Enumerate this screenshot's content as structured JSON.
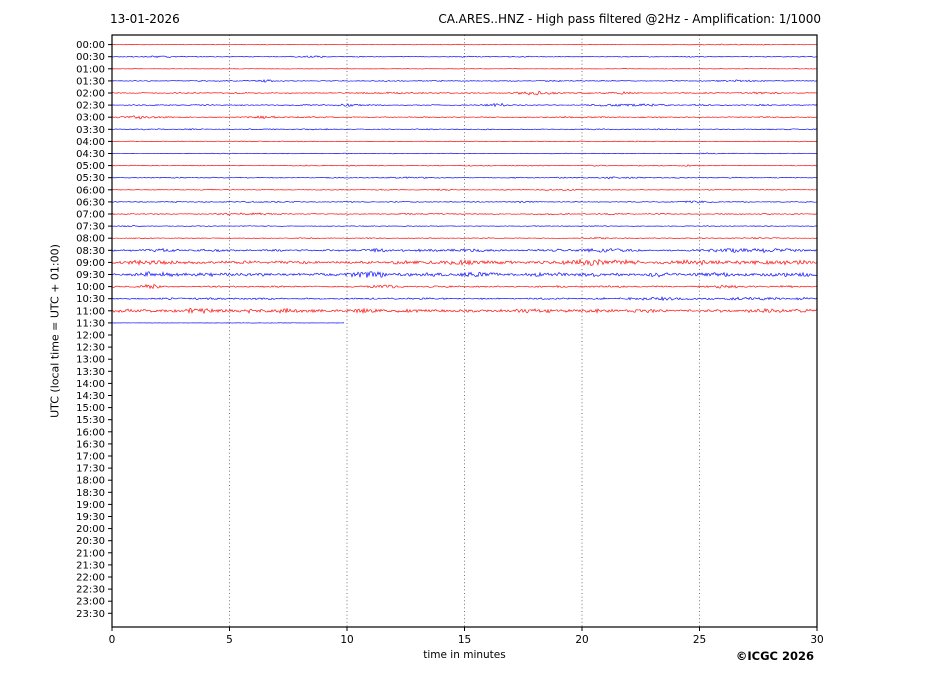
{
  "header": {
    "date_label": "13-01-2026",
    "title": "CA.ARES..HNZ - High pass filtered @2Hz - Amplification: 1/1000"
  },
  "footer": {
    "copyright": "©ICGC 2026"
  },
  "chart_data": {
    "type": "line",
    "subtype": "helicorder-seismogram",
    "title": "CA.ARES..HNZ - High pass filtered @2Hz - Amplification: 1/1000",
    "date_label": "13-01-2026",
    "xlabel": "time in minutes",
    "ylabel": "UTC (local time = UTC + 01:00)",
    "xlim": [
      0,
      30
    ],
    "x_ticks": [
      0,
      5,
      10,
      15,
      20,
      25,
      30
    ],
    "grid_minutes": [
      5,
      10,
      15,
      20,
      25
    ],
    "grid_on": true,
    "minutes_per_row": 30,
    "trace_colors": {
      "red": "#ff0000",
      "blue": "#0000ff"
    },
    "rows": [
      {
        "label": "00:00",
        "color": "red",
        "amp": 0.4,
        "end": 30,
        "bursts": [
          [
            14,
            15.2,
            0.3
          ],
          [
            23,
            28,
            0.45
          ]
        ]
      },
      {
        "label": "00:30",
        "color": "blue",
        "amp": 0.65,
        "end": 30,
        "bursts": [
          [
            1.4,
            2.6,
            1.0
          ],
          [
            8,
            9.6,
            0.7
          ]
        ]
      },
      {
        "label": "01:00",
        "color": "red",
        "amp": 0.35,
        "end": 30,
        "bursts": []
      },
      {
        "label": "01:30",
        "color": "blue",
        "amp": 0.75,
        "end": 30,
        "bursts": [
          [
            6.2,
            7,
            1.1
          ],
          [
            25.5,
            28,
            0.6
          ]
        ]
      },
      {
        "label": "02:00",
        "color": "red",
        "amp": 0.85,
        "end": 30,
        "bursts": [
          [
            10.5,
            13,
            0.5
          ],
          [
            17,
            19.3,
            1.7
          ],
          [
            20.8,
            22.5,
            1.1
          ],
          [
            26.8,
            28.6,
            0.8
          ]
        ]
      },
      {
        "label": "02:30",
        "color": "blue",
        "amp": 0.85,
        "end": 30,
        "bursts": [
          [
            9.4,
            10.6,
            1.1
          ],
          [
            15.8,
            17.2,
            1.5
          ],
          [
            20,
            24,
            1.1
          ],
          [
            26.8,
            28.2,
            0.9
          ]
        ]
      },
      {
        "label": "03:00",
        "color": "red",
        "amp": 0.85,
        "end": 30,
        "bursts": [
          [
            0,
            2.6,
            1.4
          ],
          [
            5.4,
            7.2,
            0.8
          ],
          [
            18.8,
            20,
            0.6
          ]
        ]
      },
      {
        "label": "03:30",
        "color": "blue",
        "amp": 0.75,
        "end": 30,
        "bursts": [
          [
            2.8,
            4.2,
            0.4
          ]
        ]
      },
      {
        "label": "04:00",
        "color": "red",
        "amp": 0.55,
        "end": 30,
        "bursts": []
      },
      {
        "label": "04:30",
        "color": "blue",
        "amp": 0.5,
        "end": 30,
        "bursts": [
          [
            24.8,
            26,
            0.7
          ]
        ]
      },
      {
        "label": "05:00",
        "color": "red",
        "amp": 0.65,
        "end": 30,
        "bursts": [
          [
            19.8,
            21,
            0.5
          ],
          [
            23.8,
            25.2,
            0.7
          ]
        ]
      },
      {
        "label": "05:30",
        "color": "blue",
        "amp": 0.75,
        "end": 30,
        "bursts": [
          [
            12,
            14,
            0.5
          ],
          [
            20,
            23,
            0.7
          ]
        ]
      },
      {
        "label": "06:00",
        "color": "red",
        "amp": 0.65,
        "end": 30,
        "bursts": [
          [
            13.4,
            14.6,
            0.6
          ],
          [
            18.8,
            20,
            0.5
          ]
        ]
      },
      {
        "label": "06:30",
        "color": "blue",
        "amp": 0.75,
        "end": 30,
        "bursts": [
          [
            5,
            8,
            0.5
          ],
          [
            16.8,
            18.2,
            0.6
          ],
          [
            23.8,
            26,
            0.7
          ]
        ]
      },
      {
        "label": "07:00",
        "color": "red",
        "amp": 0.85,
        "end": 30,
        "bursts": [
          [
            4,
            7,
            0.7
          ],
          [
            11.8,
            13.2,
            0.6
          ],
          [
            17.8,
            19.2,
            0.5
          ]
        ]
      },
      {
        "label": "07:30",
        "color": "blue",
        "amp": 0.6,
        "end": 30,
        "bursts": [
          [
            0,
            1.2,
            0.4
          ]
        ]
      },
      {
        "label": "08:00",
        "color": "red",
        "amp": 0.6,
        "end": 30,
        "bursts": [
          [
            10,
            12,
            0.4
          ],
          [
            19.8,
            22,
            0.5
          ],
          [
            26,
            29,
            0.55
          ]
        ]
      },
      {
        "label": "08:30",
        "color": "blue",
        "amp": 1.6,
        "end": 30,
        "bursts": [
          [
            1,
            3,
            0.9
          ],
          [
            10.5,
            12,
            0.9
          ],
          [
            14,
            16.5,
            1.0
          ],
          [
            19.5,
            23,
            1.3
          ],
          [
            24.5,
            30,
            1.1
          ]
        ]
      },
      {
        "label": "09:00",
        "color": "red",
        "amp": 2.2,
        "end": 30,
        "bursts": [
          [
            0.5,
            3,
            1.3
          ],
          [
            13,
            17.5,
            1.2
          ],
          [
            18.5,
            22.5,
            1.6
          ],
          [
            23,
            26.5,
            1.4
          ],
          [
            27,
            30,
            1.0
          ]
        ]
      },
      {
        "label": "09:30",
        "color": "blue",
        "amp": 2.6,
        "end": 30,
        "bursts": [
          [
            0.5,
            3,
            1.5
          ],
          [
            10,
            12,
            1.8
          ],
          [
            14.5,
            16.5,
            1.5
          ],
          [
            22.5,
            24,
            1.2
          ],
          [
            28,
            30,
            1.2
          ]
        ]
      },
      {
        "label": "10:00",
        "color": "red",
        "amp": 1.2,
        "end": 30,
        "bursts": [
          [
            1.1,
            2.2,
            2.6
          ],
          [
            10.5,
            12.5,
            0.8
          ],
          [
            24.5,
            27.5,
            1.0
          ]
        ]
      },
      {
        "label": "10:30",
        "color": "blue",
        "amp": 1.2,
        "end": 30,
        "bursts": [
          [
            1.8,
            3.2,
            0.9
          ],
          [
            21.5,
            25,
            1.4
          ],
          [
            26,
            28.5,
            1.3
          ],
          [
            29,
            30,
            1.0
          ]
        ]
      },
      {
        "label": "11:00",
        "color": "red",
        "amp": 2.4,
        "end": 30,
        "bursts": [
          [
            2.5,
            5,
            1.4
          ],
          [
            6.5,
            8,
            1.2
          ],
          [
            9.5,
            11.5,
            1.3
          ],
          [
            16.5,
            19,
            1.1
          ]
        ]
      },
      {
        "label": "11:30",
        "color": "blue",
        "amp": 0.22,
        "end": 9.9,
        "bursts": [
          [
            3,
            8,
            0.15
          ]
        ]
      },
      {
        "label": "12:00",
        "color": "red",
        "amp": 0,
        "end": 0,
        "bursts": []
      },
      {
        "label": "12:30",
        "color": "blue",
        "amp": 0,
        "end": 0,
        "bursts": []
      },
      {
        "label": "13:00",
        "color": "red",
        "amp": 0,
        "end": 0,
        "bursts": []
      },
      {
        "label": "13:30",
        "color": "blue",
        "amp": 0,
        "end": 0,
        "bursts": []
      },
      {
        "label": "14:00",
        "color": "red",
        "amp": 0,
        "end": 0,
        "bursts": []
      },
      {
        "label": "14:30",
        "color": "blue",
        "amp": 0,
        "end": 0,
        "bursts": []
      },
      {
        "label": "15:00",
        "color": "red",
        "amp": 0,
        "end": 0,
        "bursts": []
      },
      {
        "label": "15:30",
        "color": "blue",
        "amp": 0,
        "end": 0,
        "bursts": []
      },
      {
        "label": "16:00",
        "color": "red",
        "amp": 0,
        "end": 0,
        "bursts": []
      },
      {
        "label": "16:30",
        "color": "blue",
        "amp": 0,
        "end": 0,
        "bursts": []
      },
      {
        "label": "17:00",
        "color": "red",
        "amp": 0,
        "end": 0,
        "bursts": []
      },
      {
        "label": "17:30",
        "color": "blue",
        "amp": 0,
        "end": 0,
        "bursts": []
      },
      {
        "label": "18:00",
        "color": "red",
        "amp": 0,
        "end": 0,
        "bursts": []
      },
      {
        "label": "18:30",
        "color": "blue",
        "amp": 0,
        "end": 0,
        "bursts": []
      },
      {
        "label": "19:00",
        "color": "red",
        "amp": 0,
        "end": 0,
        "bursts": []
      },
      {
        "label": "19:30",
        "color": "blue",
        "amp": 0,
        "end": 0,
        "bursts": []
      },
      {
        "label": "20:00",
        "color": "red",
        "amp": 0,
        "end": 0,
        "bursts": []
      },
      {
        "label": "20:30",
        "color": "blue",
        "amp": 0,
        "end": 0,
        "bursts": []
      },
      {
        "label": "21:00",
        "color": "red",
        "amp": 0,
        "end": 0,
        "bursts": []
      },
      {
        "label": "21:30",
        "color": "blue",
        "amp": 0,
        "end": 0,
        "bursts": []
      },
      {
        "label": "22:00",
        "color": "red",
        "amp": 0,
        "end": 0,
        "bursts": []
      },
      {
        "label": "22:30",
        "color": "blue",
        "amp": 0,
        "end": 0,
        "bursts": []
      },
      {
        "label": "23:00",
        "color": "red",
        "amp": 0,
        "end": 0,
        "bursts": []
      },
      {
        "label": "23:30",
        "color": "blue",
        "amp": 0,
        "end": 0,
        "bursts": []
      }
    ]
  }
}
